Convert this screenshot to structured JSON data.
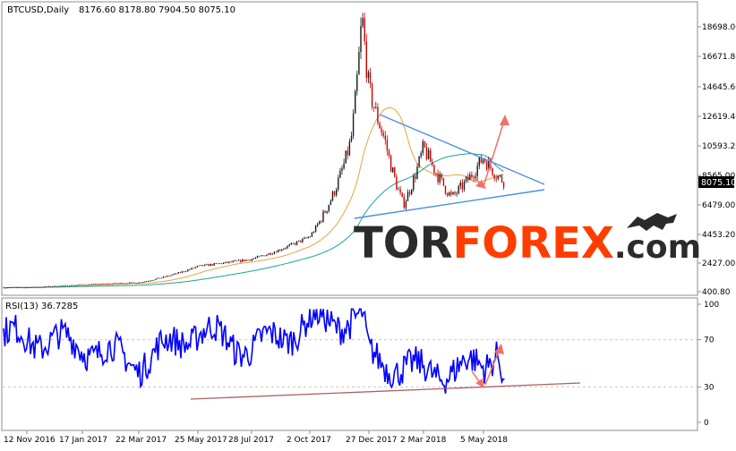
{
  "header": {
    "symbol_label": "BTCUSD,Daily",
    "ohlc_text": "8176.60 8178.80 7904.50 8075.10"
  },
  "price_panel": {
    "current_price_label": "8075.10"
  },
  "rsi_panel": {
    "label": "RSI(13) 36.7285"
  },
  "watermark": {
    "part1": "TOR",
    "part2": "FOREX",
    "part3": ".com",
    "color_dark": "#2b2b2b",
    "color_accent": "#ff3d00"
  },
  "colors": {
    "candle_up": "#1a1a1a",
    "candle_down": "#cc0000",
    "ma_fast": "#e8a33d",
    "ma_slow": "#1aa39a",
    "trendline": "#4a90e2",
    "rsi_line": "#0000ff",
    "rsi_trendline": "#b06060",
    "arrow": "#f0706a",
    "price_label_bg": "#000000"
  },
  "chart_data": [
    {
      "type": "candlestick",
      "title": "BTCUSD,Daily",
      "y_ticks": [
        "18698.00",
        "16671.80",
        "14645.60",
        "12619.40",
        "10593.20",
        "8565.00",
        "6479.00",
        "4453.20",
        "2427.00",
        "400.80"
      ],
      "ylim": [
        400.8,
        20000
      ],
      "x_ticks": [
        "12 Nov 2016",
        "17 Jan 2017",
        "22 Mar 2017",
        "25 May 2017",
        "28 Jul 2017",
        "2 Oct 2017",
        "27 Dec 2017",
        "2 Mar 2018",
        "5 May 2018"
      ],
      "last_close": 8075.1,
      "series": [
        {
          "type": "line",
          "x": [
            "12 Nov 2016",
            "17 Jan 2017",
            "22 Mar 2017",
            "25 May 2017",
            "28 Jul 2017",
            "2 Oct 2017",
            "1 Nov 2017",
            "1 Dec 2017",
            "17 Dec 2017",
            "27 Dec 2017",
            "15 Jan 2018",
            "6 Feb 2018",
            "2 Mar 2018",
            "1 Apr 2018",
            "15 Apr 2018",
            "5 May 2018",
            "20 May 2018",
            "28 May 2018"
          ],
          "values": [
            700,
            900,
            1050,
            2200,
            2700,
            4300,
            6800,
            11000,
            19500,
            14500,
            11000,
            6500,
            10500,
            7000,
            8000,
            9800,
            8500,
            8075
          ]
        }
      ],
      "annotations": [
        "descending resistance trendline",
        "ascending support trendline",
        "upside arrow",
        "downside arrow"
      ]
    },
    {
      "type": "line",
      "title": "RSI(13) 36.7285",
      "y_ticks": [
        "100",
        "70",
        "30",
        "0"
      ],
      "ylim": [
        0,
        100
      ],
      "levels": [
        70,
        30
      ],
      "series": [
        {
          "x": [
            "12 Nov 2016",
            "17 Jan 2017",
            "22 Mar 2017",
            "25 May 2017",
            "28 Jul 2017",
            "2 Oct 2017",
            "17 Dec 2017",
            "27 Dec 2017",
            "2 Mar 2018",
            "5 May 2018",
            "20 May 2018",
            "28 May 2018"
          ],
          "values": [
            72,
            65,
            50,
            78,
            62,
            84,
            88,
            55,
            42,
            48,
            65,
            36.7
          ]
        }
      ],
      "annotations": [
        "ascending support trendline",
        "upside arrow"
      ]
    }
  ]
}
